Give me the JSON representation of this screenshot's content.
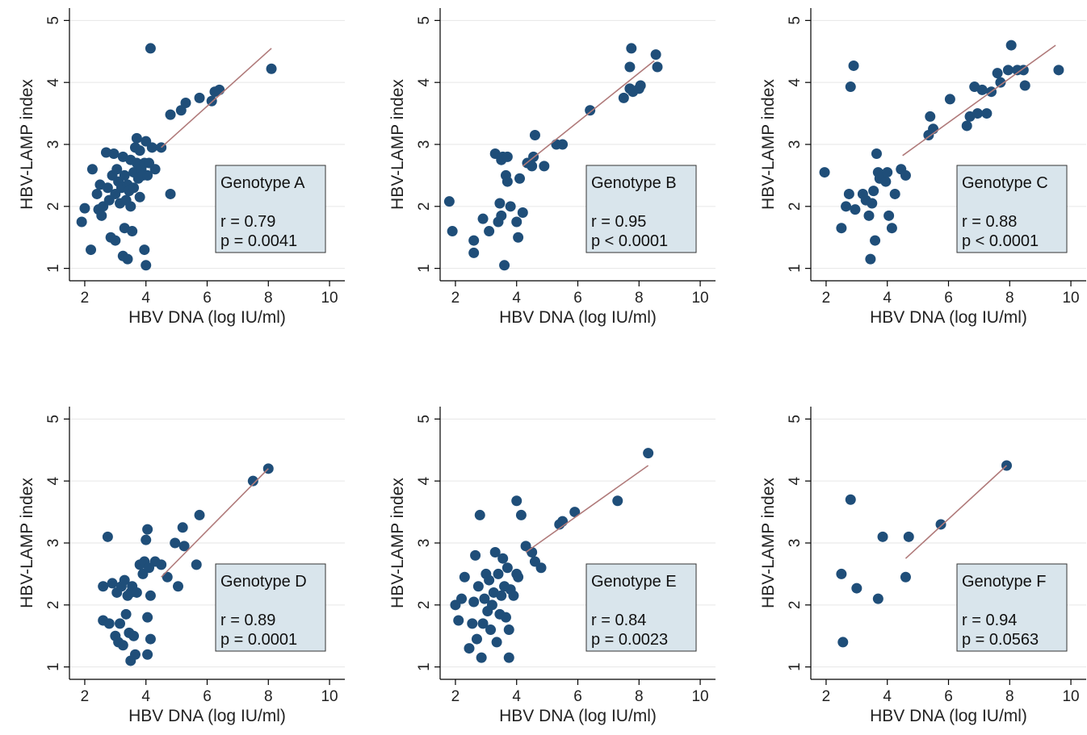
{
  "chart_data": [
    {
      "type": "scatter",
      "xlabel": "HBV DNA (log IU/ml)",
      "ylabel": "HBV-LAMP index",
      "xlim": [
        1.5,
        10.5
      ],
      "ylim": [
        0.8,
        5.2
      ],
      "xticks": [
        2,
        4,
        6,
        8,
        10
      ],
      "yticks": [
        1,
        2,
        3,
        4,
        5
      ],
      "grid": true,
      "legend": {
        "title": "Genotype A",
        "r": "r = 0.79",
        "p": "p = 0.0041",
        "placement": "bottom-right"
      },
      "fit": {
        "x": [
          4.5,
          8.1
        ],
        "y": [
          2.95,
          4.55
        ]
      },
      "points": [
        [
          1.9,
          1.75
        ],
        [
          2.0,
          1.97
        ],
        [
          2.2,
          1.3
        ],
        [
          2.25,
          2.6
        ],
        [
          2.4,
          2.2
        ],
        [
          2.45,
          1.95
        ],
        [
          2.5,
          2.35
        ],
        [
          2.55,
          1.85
        ],
        [
          2.6,
          2.0
        ],
        [
          2.7,
          2.87
        ],
        [
          2.75,
          2.3
        ],
        [
          2.8,
          2.1
        ],
        [
          2.85,
          1.5
        ],
        [
          2.9,
          2.5
        ],
        [
          2.95,
          2.85
        ],
        [
          3.0,
          2.2
        ],
        [
          3.0,
          1.45
        ],
        [
          3.05,
          2.6
        ],
        [
          3.1,
          2.4
        ],
        [
          3.15,
          2.05
        ],
        [
          3.2,
          2.3
        ],
        [
          3.25,
          2.8
        ],
        [
          3.25,
          1.2
        ],
        [
          3.3,
          1.65
        ],
        [
          3.3,
          2.5
        ],
        [
          3.35,
          2.1
        ],
        [
          3.4,
          2.35
        ],
        [
          3.4,
          1.15
        ],
        [
          3.45,
          2.25
        ],
        [
          3.5,
          2.0
        ],
        [
          3.5,
          2.75
        ],
        [
          3.55,
          1.6
        ],
        [
          3.6,
          2.3
        ],
        [
          3.6,
          2.55
        ],
        [
          3.65,
          2.95
        ],
        [
          3.7,
          2.7
        ],
        [
          3.7,
          3.1
        ],
        [
          3.75,
          2.45
        ],
        [
          3.8,
          2.15
        ],
        [
          3.8,
          2.9
        ],
        [
          3.85,
          2.6
        ],
        [
          3.9,
          2.5
        ],
        [
          3.95,
          2.7
        ],
        [
          3.95,
          1.3
        ],
        [
          4.0,
          3.05
        ],
        [
          4.0,
          1.05
        ],
        [
          4.05,
          2.5
        ],
        [
          4.1,
          2.7
        ],
        [
          4.15,
          4.55
        ],
        [
          4.2,
          2.95
        ],
        [
          4.3,
          2.6
        ],
        [
          4.5,
          2.95
        ],
        [
          4.8,
          2.2
        ],
        [
          4.8,
          3.48
        ],
        [
          5.15,
          3.55
        ],
        [
          5.3,
          3.67
        ],
        [
          5.75,
          3.75
        ],
        [
          6.15,
          3.7
        ],
        [
          6.25,
          3.85
        ],
        [
          6.4,
          3.88
        ],
        [
          8.1,
          4.22
        ]
      ]
    },
    {
      "type": "scatter",
      "xlabel": "HBV DNA (log IU/ml)",
      "ylabel": "HBV-LAMP index",
      "xlim": [
        1.5,
        10.5
      ],
      "ylim": [
        0.8,
        5.2
      ],
      "xticks": [
        2,
        4,
        6,
        8,
        10
      ],
      "yticks": [
        1,
        2,
        3,
        4,
        5
      ],
      "grid": true,
      "legend": {
        "title": "Genotype B",
        "r": "r = 0.95",
        "p": "p < 0.0001",
        "placement": "bottom-right"
      },
      "fit": {
        "x": [
          4.2,
          8.5
        ],
        "y": [
          2.65,
          4.35
        ]
      },
      "points": [
        [
          1.8,
          2.08
        ],
        [
          1.9,
          1.6
        ],
        [
          2.6,
          1.45
        ],
        [
          2.6,
          1.25
        ],
        [
          2.9,
          1.8
        ],
        [
          3.1,
          1.6
        ],
        [
          3.3,
          2.85
        ],
        [
          3.4,
          1.75
        ],
        [
          3.45,
          2.05
        ],
        [
          3.5,
          2.75
        ],
        [
          3.5,
          1.85
        ],
        [
          3.55,
          2.8
        ],
        [
          3.6,
          1.05
        ],
        [
          3.65,
          2.5
        ],
        [
          3.7,
          2.4
        ],
        [
          3.7,
          2.8
        ],
        [
          3.8,
          2.0
        ],
        [
          4.0,
          1.75
        ],
        [
          4.05,
          1.5
        ],
        [
          4.1,
          2.45
        ],
        [
          4.2,
          1.9
        ],
        [
          4.35,
          2.7
        ],
        [
          4.5,
          2.65
        ],
        [
          4.55,
          2.8
        ],
        [
          4.6,
          3.15
        ],
        [
          4.9,
          2.65
        ],
        [
          5.3,
          3.0
        ],
        [
          5.5,
          3.0
        ],
        [
          6.4,
          3.55
        ],
        [
          7.5,
          3.75
        ],
        [
          7.7,
          3.9
        ],
        [
          7.7,
          4.25
        ],
        [
          7.75,
          4.55
        ],
        [
          7.8,
          3.85
        ],
        [
          8.0,
          3.9
        ],
        [
          8.05,
          3.95
        ],
        [
          8.55,
          4.45
        ],
        [
          8.6,
          4.25
        ]
      ]
    },
    {
      "type": "scatter",
      "xlabel": "HBV DNA (log IU/ml)",
      "ylabel": "HBV-LAMP index",
      "xlim": [
        1.5,
        10.5
      ],
      "ylim": [
        0.8,
        5.2
      ],
      "xticks": [
        2,
        4,
        6,
        8,
        10
      ],
      "yticks": [
        1,
        2,
        3,
        4,
        5
      ],
      "grid": true,
      "legend": {
        "title": "Genotype C",
        "r": "r = 0.88",
        "p": "p < 0.0001",
        "placement": "bottom-right"
      },
      "fit": {
        "x": [
          4.5,
          9.5
        ],
        "y": [
          2.82,
          4.6
        ]
      },
      "points": [
        [
          1.95,
          2.55
        ],
        [
          2.5,
          1.65
        ],
        [
          2.65,
          2.0
        ],
        [
          2.75,
          2.2
        ],
        [
          2.8,
          3.93
        ],
        [
          2.9,
          4.27
        ],
        [
          2.95,
          1.95
        ],
        [
          3.2,
          2.2
        ],
        [
          3.3,
          2.1
        ],
        [
          3.4,
          1.85
        ],
        [
          3.45,
          1.15
        ],
        [
          3.5,
          2.05
        ],
        [
          3.55,
          2.25
        ],
        [
          3.6,
          1.45
        ],
        [
          3.65,
          2.85
        ],
        [
          3.7,
          2.55
        ],
        [
          3.75,
          2.45
        ],
        [
          3.85,
          2.5
        ],
        [
          3.95,
          2.4
        ],
        [
          4.0,
          2.55
        ],
        [
          4.05,
          1.85
        ],
        [
          4.15,
          1.65
        ],
        [
          4.25,
          2.2
        ],
        [
          4.45,
          2.6
        ],
        [
          4.6,
          2.5
        ],
        [
          5.35,
          3.15
        ],
        [
          5.4,
          3.45
        ],
        [
          5.5,
          3.25
        ],
        [
          6.05,
          3.73
        ],
        [
          6.6,
          3.3
        ],
        [
          6.7,
          3.45
        ],
        [
          6.85,
          3.93
        ],
        [
          6.95,
          3.5
        ],
        [
          7.1,
          3.88
        ],
        [
          7.25,
          3.5
        ],
        [
          7.4,
          3.85
        ],
        [
          7.6,
          4.15
        ],
        [
          7.7,
          4.0
        ],
        [
          7.95,
          4.2
        ],
        [
          8.05,
          4.6
        ],
        [
          8.25,
          4.2
        ],
        [
          8.45,
          4.2
        ],
        [
          8.5,
          3.95
        ],
        [
          9.6,
          4.2
        ]
      ]
    },
    {
      "type": "scatter",
      "xlabel": "HBV DNA (log IU/ml)",
      "ylabel": "HBV-LAMP index",
      "xlim": [
        1.5,
        10.5
      ],
      "ylim": [
        0.8,
        5.2
      ],
      "xticks": [
        2,
        4,
        6,
        8,
        10
      ],
      "yticks": [
        1,
        2,
        3,
        4,
        5
      ],
      "grid": true,
      "legend": {
        "title": "Genotype D",
        "r": "r = 0.89",
        "p": "p = 0.0001",
        "placement": "bottom-right"
      },
      "fit": {
        "x": [
          4.5,
          8.0
        ],
        "y": [
          2.45,
          4.2
        ]
      },
      "points": [
        [
          2.6,
          2.3
        ],
        [
          2.6,
          1.75
        ],
        [
          2.75,
          3.1
        ],
        [
          2.8,
          1.7
        ],
        [
          2.9,
          2.35
        ],
        [
          3.0,
          1.5
        ],
        [
          3.05,
          2.2
        ],
        [
          3.1,
          1.4
        ],
        [
          3.15,
          1.7
        ],
        [
          3.2,
          2.3
        ],
        [
          3.25,
          1.35
        ],
        [
          3.3,
          2.4
        ],
        [
          3.35,
          1.85
        ],
        [
          3.4,
          2.15
        ],
        [
          3.45,
          1.55
        ],
        [
          3.5,
          2.2
        ],
        [
          3.5,
          1.1
        ],
        [
          3.55,
          2.3
        ],
        [
          3.6,
          1.5
        ],
        [
          3.65,
          1.2
        ],
        [
          3.7,
          2.2
        ],
        [
          3.8,
          2.65
        ],
        [
          3.9,
          2.5
        ],
        [
          3.95,
          2.7
        ],
        [
          4.0,
          3.05
        ],
        [
          4.05,
          3.22
        ],
        [
          4.05,
          1.8
        ],
        [
          4.1,
          2.6
        ],
        [
          4.15,
          2.15
        ],
        [
          4.15,
          1.45
        ],
        [
          4.05,
          1.2
        ],
        [
          4.3,
          2.7
        ],
        [
          4.5,
          2.65
        ],
        [
          4.7,
          2.45
        ],
        [
          4.95,
          3.0
        ],
        [
          5.05,
          2.3
        ],
        [
          5.2,
          3.25
        ],
        [
          5.25,
          2.95
        ],
        [
          5.65,
          2.65
        ],
        [
          5.75,
          3.45
        ],
        [
          7.5,
          4.0
        ],
        [
          8.0,
          4.2
        ]
      ]
    },
    {
      "type": "scatter",
      "xlabel": "HBV DNA (log IU/ml)",
      "ylabel": "HBV-LAMP index",
      "xlim": [
        1.5,
        10.5
      ],
      "ylim": [
        0.8,
        5.2
      ],
      "xticks": [
        2,
        4,
        6,
        8,
        10
      ],
      "yticks": [
        1,
        2,
        3,
        4,
        5
      ],
      "grid": true,
      "legend": {
        "title": "Genotype E",
        "r": "r = 0.84",
        "p": "p = 0.0023",
        "placement": "bottom-right"
      },
      "fit": {
        "x": [
          4.3,
          8.3
        ],
        "y": [
          2.85,
          4.25
        ]
      },
      "points": [
        [
          2.0,
          2.0
        ],
        [
          2.1,
          1.75
        ],
        [
          2.2,
          2.1
        ],
        [
          2.3,
          2.45
        ],
        [
          2.45,
          1.3
        ],
        [
          2.55,
          1.7
        ],
        [
          2.6,
          2.05
        ],
        [
          2.65,
          2.8
        ],
        [
          2.7,
          1.45
        ],
        [
          2.75,
          2.3
        ],
        [
          2.8,
          3.45
        ],
        [
          2.85,
          1.15
        ],
        [
          2.9,
          1.7
        ],
        [
          2.95,
          2.1
        ],
        [
          3.0,
          2.5
        ],
        [
          3.05,
          1.9
        ],
        [
          3.1,
          2.4
        ],
        [
          3.15,
          1.6
        ],
        [
          3.2,
          2.0
        ],
        [
          3.25,
          2.2
        ],
        [
          3.3,
          2.85
        ],
        [
          3.35,
          1.4
        ],
        [
          3.4,
          2.5
        ],
        [
          3.45,
          1.85
        ],
        [
          3.5,
          2.15
        ],
        [
          3.55,
          2.75
        ],
        [
          3.6,
          2.3
        ],
        [
          3.65,
          1.8
        ],
        [
          3.7,
          2.6
        ],
        [
          3.75,
          1.6
        ],
        [
          3.75,
          1.15
        ],
        [
          3.8,
          2.25
        ],
        [
          3.9,
          2.15
        ],
        [
          4.0,
          2.5
        ],
        [
          4.0,
          3.68
        ],
        [
          4.05,
          2.45
        ],
        [
          4.15,
          3.45
        ],
        [
          4.3,
          2.95
        ],
        [
          4.5,
          2.85
        ],
        [
          4.6,
          2.7
        ],
        [
          4.8,
          2.6
        ],
        [
          5.4,
          3.3
        ],
        [
          5.5,
          3.35
        ],
        [
          5.9,
          3.5
        ],
        [
          7.3,
          3.68
        ],
        [
          8.3,
          4.45
        ]
      ]
    },
    {
      "type": "scatter",
      "xlabel": "HBV DNA (log IU/ml)",
      "ylabel": "HBV-LAMP index",
      "xlim": [
        1.5,
        10.5
      ],
      "ylim": [
        0.8,
        5.2
      ],
      "xticks": [
        2,
        4,
        6,
        8,
        10
      ],
      "yticks": [
        1,
        2,
        3,
        4,
        5
      ],
      "grid": true,
      "legend": {
        "title": "Genotype F",
        "r": "r = 0.94",
        "p": "p = 0.0563",
        "placement": "bottom-right"
      },
      "fit": {
        "x": [
          4.6,
          7.9
        ],
        "y": [
          2.75,
          4.25
        ]
      },
      "points": [
        [
          2.5,
          2.5
        ],
        [
          2.55,
          1.4
        ],
        [
          2.8,
          3.7
        ],
        [
          3.0,
          2.27
        ],
        [
          3.7,
          2.1
        ],
        [
          3.85,
          3.1
        ],
        [
          4.6,
          2.45
        ],
        [
          4.7,
          3.1
        ],
        [
          5.75,
          3.3
        ],
        [
          7.9,
          4.25
        ]
      ]
    }
  ]
}
